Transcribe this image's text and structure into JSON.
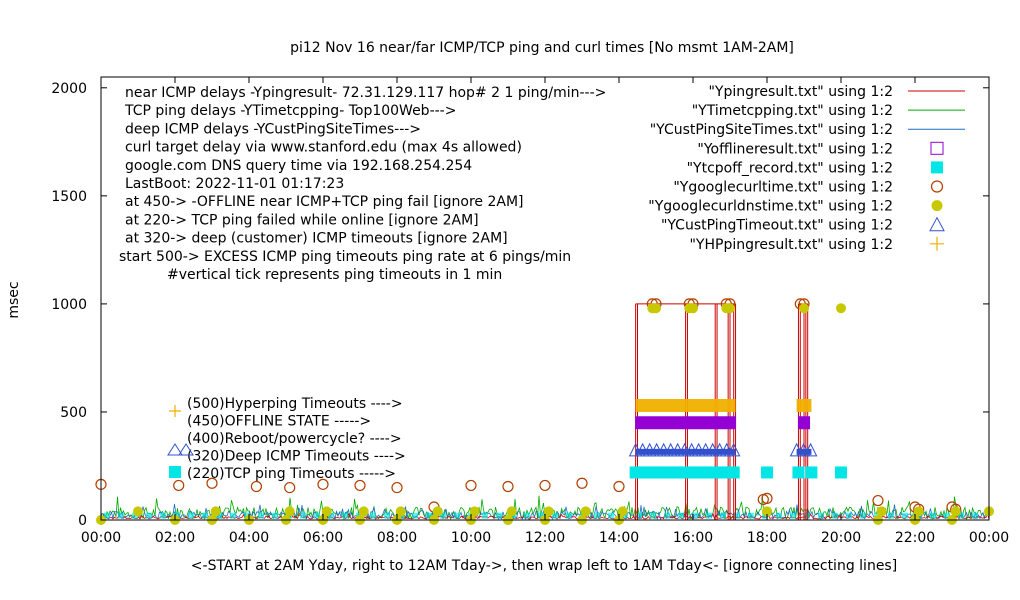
{
  "chart_data": {
    "type": "line",
    "title": "pi12 Nov 16  near/far ICMP/TCP ping and curl times [No msmt 1AM-2AM]",
    "ylabel": "msec",
    "xlabel": "<-START at 2AM Yday, right to 12AM Tday->, then wrap left to 1AM Tday<- [ignore connecting lines]",
    "xlim": [
      0,
      24
    ],
    "ylim": [
      0,
      2050
    ],
    "x_ticks": [
      "00:00",
      "02:00",
      "04:00",
      "06:00",
      "08:00",
      "10:00",
      "12:00",
      "14:00",
      "16:00",
      "18:00",
      "20:00",
      "22:00",
      "00:00"
    ],
    "y_ticks": [
      "0",
      "500",
      "1000",
      "1500",
      "2000"
    ],
    "y_tick_values": [
      0,
      500,
      1000,
      1500,
      2000
    ],
    "info_lines": [
      "near ICMP delays -Ypingresult- 72.31.129.117 hop# 2  1 ping/min--->",
      "TCP ping delays -YTimetcpping- Top100Web--->",
      "deep ICMP delays -YCustPingSiteTimes--->",
      "curl target delay via www.stanford.edu (max 4s allowed)",
      "google.com DNS query time via 192.168.254.254",
      "LastBoot: 2022-11-01 01:17:23",
      "at 450-> -OFFLINE near ICMP+TCP ping fail [ignore 2AM]",
      "at 220-> TCP ping failed while online [ignore 2AM]",
      "at 320-> deep (customer) ICMP timeouts [ignore 2AM]",
      "start 500-> EXCESS ICMP ping timeouts ping rate at 6 pings/min",
      "#vertical tick represents ping timeouts in 1 min"
    ],
    "level_labels": [
      "(500)Hyperping Timeouts ---->",
      "(450)OFFLINE STATE ----->",
      "(400)Reboot/powercycle? ---->",
      "(320)Deep ICMP Timeouts ---->",
      "(220)TCP ping Timeouts ----->"
    ],
    "legend": [
      {
        "label": "\"Ypingresult.txt\" using 1:2",
        "color": "#cc0000",
        "style": "line"
      },
      {
        "label": "\"YTimetcpping.txt\" using 1:2",
        "color": "#00aa00",
        "style": "line"
      },
      {
        "label": "\"YCustPingSiteTimes.txt\" using 1:2",
        "color": "#1f6fc4",
        "style": "line"
      },
      {
        "label": "\"Yofflineresult.txt\" using 1:2",
        "color": "#9400d3",
        "style": "open-square"
      },
      {
        "label": "\"Ytcpoff_record.txt\" using 1:2",
        "color": "#00e5e5",
        "style": "filled-square"
      },
      {
        "label": "\"Ygooglecurltime.txt\" using 1:2",
        "color": "#b04000",
        "style": "open-circle"
      },
      {
        "label": "\"Ygooglecurldnstime.txt\" using 1:2",
        "color": "#c8c800",
        "style": "filled-circle"
      },
      {
        "label": "\"YCustPingTimeout.txt\" using 1:2",
        "color": "#3050d0",
        "style": "open-triangle"
      },
      {
        "label": "\"YHPpingresult.txt\" using 1:2",
        "color": "#f0b000",
        "style": "plus"
      }
    ],
    "series": [
      {
        "name": "Ypingresult.txt",
        "kind": "spikes",
        "x": [
          14.45,
          14.5,
          15.8,
          15.85,
          16.6,
          16.65,
          16.95,
          17.0,
          17.1,
          17.15,
          18.85,
          18.9,
          19.0,
          19.05,
          19.1
        ],
        "y": [
          1000,
          1000,
          1000,
          1000,
          1000,
          1000,
          1000,
          1000,
          1000,
          1000,
          1000,
          1000,
          1000,
          1000,
          1000
        ]
      },
      {
        "name": "Ygooglecurltime.txt",
        "x": [
          0.0,
          2.1,
          3.0,
          4.2,
          5.1,
          6.0,
          7.0,
          8.0,
          9.0,
          10.0,
          11.0,
          12.0,
          13.0,
          14.0,
          14.9,
          15.0,
          15.9,
          16.0,
          16.9,
          17.0,
          17.9,
          18.0,
          18.9,
          19.0,
          21.0,
          22.0,
          22.1,
          23.0,
          23.1
        ],
        "y": [
          165,
          160,
          170,
          155,
          150,
          165,
          160,
          150,
          60,
          160,
          155,
          160,
          170,
          155,
          1000,
          1000,
          1000,
          1000,
          1000,
          1000,
          95,
          100,
          1000,
          1000,
          90,
          60,
          50,
          60,
          50
        ]
      },
      {
        "name": "Ygooglecurldnstime.txt",
        "x": [
          0.0,
          1.0,
          2.0,
          3.0,
          3.1,
          4.0,
          5.0,
          5.1,
          6.0,
          6.1,
          7.0,
          7.1,
          8.0,
          8.1,
          9.0,
          9.1,
          10.0,
          10.1,
          11.0,
          11.1,
          12.0,
          12.1,
          13.0,
          13.1,
          14.0,
          14.1,
          14.9,
          15.0,
          15.9,
          16.0,
          16.9,
          17.0,
          18.0,
          19.0,
          20.0,
          21.0,
          21.1,
          22.0,
          22.1,
          23.0,
          23.1,
          24.0
        ],
        "y": [
          0,
          40,
          0,
          0,
          40,
          0,
          0,
          40,
          0,
          40,
          0,
          40,
          0,
          40,
          0,
          40,
          0,
          40,
          0,
          40,
          0,
          40,
          0,
          40,
          0,
          40,
          980,
          980,
          980,
          980,
          980,
          980,
          40,
          980,
          980,
          0,
          40,
          0,
          40,
          0,
          40,
          40
        ]
      },
      {
        "name": "YHPpingresult.txt",
        "kind": "band",
        "ranges": [
          [
            14.45,
            17.15
          ],
          [
            18.8,
            19.2
          ]
        ],
        "band_y": [
          500,
          560
        ]
      },
      {
        "name": "Yofflineresult.txt",
        "kind": "band",
        "ranges": [
          [
            14.45,
            17.15
          ],
          [
            18.85,
            19.15
          ]
        ],
        "band_y": [
          450,
          450
        ]
      },
      {
        "name": "YCustPingTimeout.txt",
        "kind": "band",
        "ranges": [
          [
            14.45,
            17.15
          ],
          [
            18.8,
            19.2
          ]
        ],
        "band_y": [
          320,
          320
        ]
      },
      {
        "name": "Ytcpoff_record.txt",
        "kind": "points",
        "x": [
          14.45,
          14.7,
          15.0,
          15.3,
          15.6,
          15.9,
          16.2,
          16.5,
          16.8,
          17.1,
          18.0,
          18.85,
          19.2,
          20.0
        ],
        "y": [
          220,
          220,
          220,
          220,
          220,
          220,
          220,
          220,
          220,
          220,
          220,
          220,
          220,
          220
        ]
      }
    ]
  }
}
